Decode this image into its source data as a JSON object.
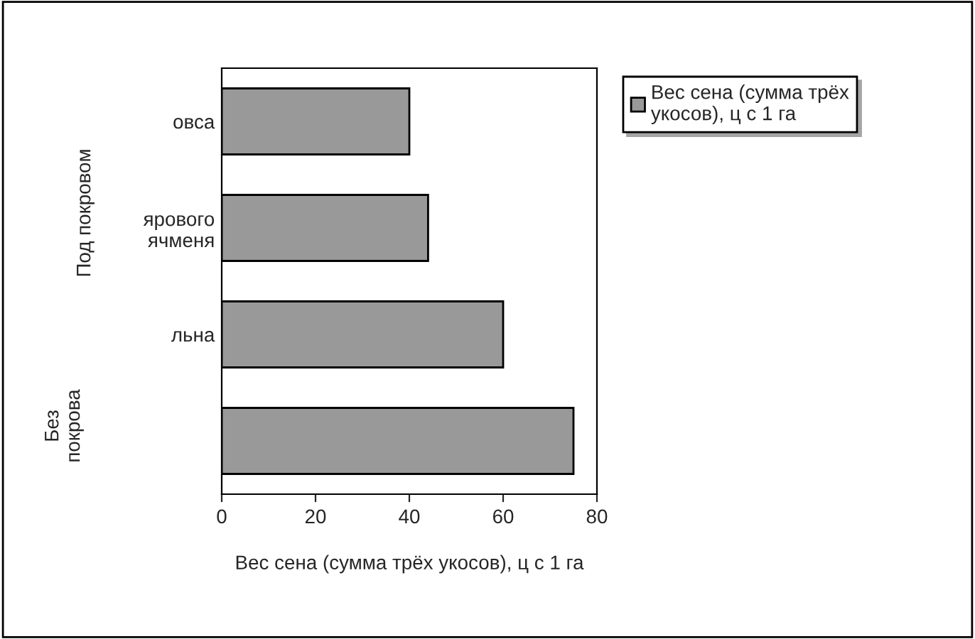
{
  "chart_data": {
    "type": "bar",
    "orientation": "horizontal",
    "categories": [
      "овса",
      "ярового\nячменя",
      "льна",
      null
    ],
    "series": [
      {
        "name": "Вес сена (сумма трёх укосов), ц с 1 га",
        "color": "#999999",
        "values": [
          40,
          44,
          60,
          75
        ]
      }
    ],
    "xlabel": "Вес сена (сумма трёх укосов), ц с 1 га",
    "xlim": [
      0,
      80
    ],
    "xticks": [
      0,
      20,
      40,
      60,
      80
    ],
    "annotations": [
      "Под покровом",
      "Без покрова"
    ],
    "grid": false,
    "legend": "right"
  }
}
